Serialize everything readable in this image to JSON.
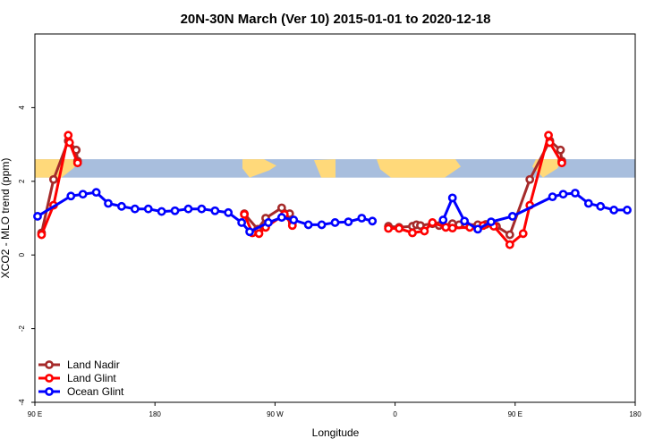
{
  "chart_data": {
    "type": "line",
    "title": "20N-30N March (Ver 10)   2015-01-01 to 2020-12-18",
    "xlabel": "Longitude",
    "ylabel": "XCO2 - MLO trend (ppm)",
    "xlim": [
      90,
      540
    ],
    "ylim": [
      -4,
      6
    ],
    "x_ticks": [
      {
        "value": 90,
        "label": "90 E"
      },
      {
        "value": 180,
        "label": "180"
      },
      {
        "value": 270,
        "label": "90 W"
      },
      {
        "value": 360,
        "label": "0"
      },
      {
        "value": 450,
        "label": "90 E"
      },
      {
        "value": 540,
        "label": "180"
      }
    ],
    "y_ticks": [
      {
        "value": -4,
        "label": "-4"
      },
      {
        "value": -2,
        "label": "-2"
      },
      {
        "value": 0,
        "label": "0"
      },
      {
        "value": 2,
        "label": "2"
      },
      {
        "value": 4,
        "label": "4"
      }
    ],
    "map_band": {
      "y_range": [
        2.1,
        2.6
      ],
      "ocean_color": "#A8BEDD",
      "land_color": "#FFD97A"
    },
    "legend": {
      "position": "bottom-left"
    },
    "series": [
      {
        "name": "Land Nadir",
        "color": "#A52A2A",
        "points": [
          [
            95,
            0.6
          ],
          [
            104,
            2.05
          ],
          [
            115,
            3.1
          ],
          [
            121,
            2.85
          ],
          [
            122,
            2.55
          ],
          [
            247,
            1.12
          ],
          [
            257,
            0.7
          ],
          [
            263,
            1.0
          ],
          [
            275,
            1.28
          ],
          [
            281,
            1.12
          ],
          [
            283,
            0.88
          ],
          [
            355,
            0.78
          ],
          [
            363,
            0.75
          ],
          [
            373,
            0.78
          ],
          [
            376,
            0.82
          ],
          [
            379,
            0.8
          ],
          [
            388,
            0.85
          ],
          [
            393,
            0.8
          ],
          [
            403,
            0.85
          ],
          [
            408,
            0.82
          ],
          [
            413,
            0.82
          ],
          [
            422,
            0.82
          ],
          [
            428,
            0.83
          ],
          [
            436,
            0.78
          ],
          [
            446,
            0.55
          ],
          [
            461,
            2.05
          ],
          [
            476,
            3.1
          ],
          [
            484,
            2.85
          ],
          [
            485,
            2.55
          ]
        ]
      },
      {
        "name": "Land Glint",
        "color": "#FF0000",
        "points": [
          [
            95,
            0.55
          ],
          [
            104,
            1.35
          ],
          [
            115,
            3.25
          ],
          [
            116,
            3.05
          ],
          [
            122,
            2.5
          ],
          [
            247,
            1.1
          ],
          [
            253,
            0.6
          ],
          [
            258,
            0.58
          ],
          [
            263,
            0.75
          ],
          [
            277,
            1.1
          ],
          [
            283,
            0.8
          ],
          [
            355,
            0.72
          ],
          [
            363,
            0.72
          ],
          [
            373,
            0.6
          ],
          [
            382,
            0.65
          ],
          [
            388,
            0.88
          ],
          [
            398,
            0.75
          ],
          [
            403,
            0.73
          ],
          [
            416,
            0.75
          ],
          [
            426,
            0.8
          ],
          [
            434,
            0.78
          ],
          [
            446,
            0.28
          ],
          [
            456,
            0.58
          ],
          [
            461,
            1.35
          ],
          [
            475,
            3.25
          ],
          [
            476,
            3.05
          ],
          [
            485,
            2.5
          ]
        ]
      },
      {
        "name": "Ocean Glint",
        "color": "#0000FF",
        "points": [
          [
            92,
            1.05
          ],
          [
            117,
            1.6
          ],
          [
            126,
            1.65
          ],
          [
            136,
            1.7
          ],
          [
            145,
            1.4
          ],
          [
            155,
            1.32
          ],
          [
            165,
            1.25
          ],
          [
            175,
            1.25
          ],
          [
            185,
            1.18
          ],
          [
            195,
            1.2
          ],
          [
            205,
            1.25
          ],
          [
            215,
            1.25
          ],
          [
            225,
            1.2
          ],
          [
            235,
            1.15
          ],
          [
            245,
            0.88
          ],
          [
            251,
            0.63
          ],
          [
            265,
            0.88
          ],
          [
            275,
            1.02
          ],
          [
            284,
            0.95
          ],
          [
            295,
            0.82
          ],
          [
            305,
            0.82
          ],
          [
            315,
            0.88
          ],
          [
            325,
            0.9
          ],
          [
            335,
            1.0
          ],
          [
            343,
            0.92
          ],
          [
            396,
            0.95
          ],
          [
            403,
            1.55
          ],
          [
            412,
            0.92
          ],
          [
            422,
            0.7
          ],
          [
            432,
            0.9
          ],
          [
            448,
            1.05
          ],
          [
            478,
            1.58
          ],
          [
            486,
            1.65
          ],
          [
            495,
            1.68
          ],
          [
            505,
            1.4
          ],
          [
            514,
            1.32
          ],
          [
            524,
            1.22
          ],
          [
            534,
            1.22
          ]
        ]
      }
    ]
  }
}
